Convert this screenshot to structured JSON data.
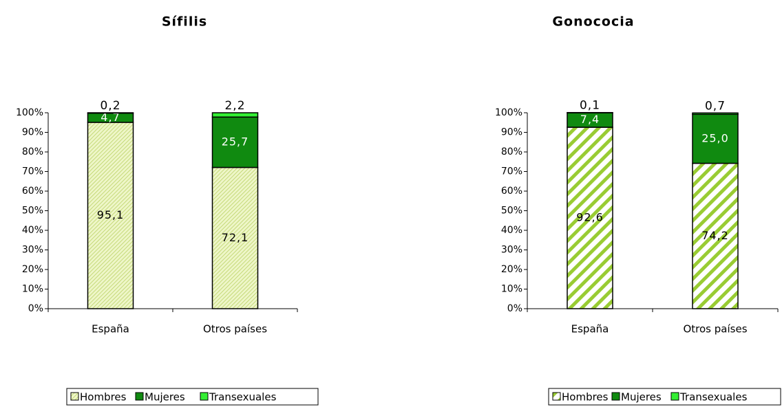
{
  "chart_data": [
    {
      "type": "bar",
      "stacked": true,
      "title": "Sífilis",
      "categories": [
        "España",
        "Otros países"
      ],
      "series": [
        {
          "name": "Hombres",
          "color": "#c8e070",
          "values": [
            95.1,
            72.1
          ],
          "value_labels": [
            "95,1",
            "72,1"
          ]
        },
        {
          "name": "Mujeres",
          "color": "#108a10",
          "values": [
            4.7,
            25.7
          ],
          "value_labels": [
            "4,7",
            "25,7"
          ]
        },
        {
          "name": "Transexuales",
          "color": "#33ee33",
          "values": [
            0.2,
            2.2
          ],
          "value_labels": [
            "0,2",
            "2,2"
          ]
        }
      ],
      "ylim": [
        0,
        100
      ],
      "yticks": [
        {
          "value": 0,
          "label": "0%"
        },
        {
          "value": 10,
          "label": "10%"
        },
        {
          "value": 20,
          "label": "20%"
        },
        {
          "value": 30,
          "label": "30%"
        },
        {
          "value": 40,
          "label": "40%"
        },
        {
          "value": 50,
          "label": "50%"
        },
        {
          "value": 60,
          "label": "60%"
        },
        {
          "value": 70,
          "label": "70%"
        },
        {
          "value": 80,
          "label": "80%"
        },
        {
          "value": 90,
          "label": "90%"
        },
        {
          "value": 100,
          "label": "100%"
        }
      ],
      "legend": "bottom"
    },
    {
      "type": "bar",
      "stacked": true,
      "title": "Gonococia",
      "categories": [
        "España",
        "Otros países"
      ],
      "series": [
        {
          "name": "Hombres",
          "color": "#99cc33",
          "values": [
            92.6,
            74.2
          ],
          "value_labels": [
            "92,6",
            "74,2"
          ]
        },
        {
          "name": "Mujeres",
          "color": "#108a10",
          "values": [
            7.4,
            25.0
          ],
          "value_labels": [
            "7,4",
            "25,0"
          ]
        },
        {
          "name": "Transexuales",
          "color": "#33ee33",
          "values": [
            0.1,
            0.7
          ],
          "value_labels": [
            "0,1",
            "0,7"
          ]
        }
      ],
      "ylim": [
        0,
        100
      ],
      "yticks": [
        {
          "value": 0,
          "label": "0%"
        },
        {
          "value": 10,
          "label": "10%"
        },
        {
          "value": 20,
          "label": "20%"
        },
        {
          "value": 30,
          "label": "30%"
        },
        {
          "value": 40,
          "label": "40%"
        },
        {
          "value": 50,
          "label": "50%"
        },
        {
          "value": 60,
          "label": "60%"
        },
        {
          "value": 70,
          "label": "70%"
        },
        {
          "value": 80,
          "label": "80%"
        },
        {
          "value": 90,
          "label": "90%"
        },
        {
          "value": 100,
          "label": "100%"
        }
      ],
      "legend": "bottom"
    }
  ]
}
